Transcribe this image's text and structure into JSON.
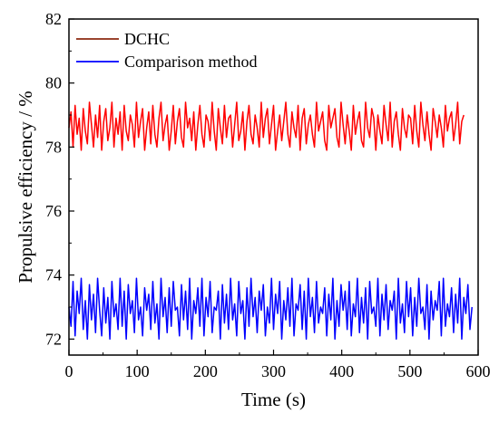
{
  "chart_data": {
    "type": "line",
    "xlabel": "Time (s)",
    "ylabel": "Propulsive efficiency / %",
    "xlim": [
      0,
      600
    ],
    "ylim": [
      71.5,
      82
    ],
    "x_ticks": [
      0,
      100,
      200,
      300,
      400,
      500,
      600
    ],
    "x_tick_labels": [
      "0",
      "100",
      "200",
      "300",
      "400",
      "500",
      "600"
    ],
    "y_ticks": [
      72,
      74,
      76,
      78,
      80,
      82
    ],
    "y_tick_labels": [
      "72",
      "74",
      "76",
      "78",
      "80",
      "82"
    ],
    "grid": false,
    "legend_position": "top-left",
    "series": [
      {
        "name": "DCHC",
        "color": "#ff0000",
        "legend_color": "#8b2a10",
        "x_start": 0,
        "x_step": 3,
        "values": [
          78.6,
          79.1,
          78.0,
          79.3,
          78.4,
          78.9,
          77.9,
          79.2,
          78.5,
          78.1,
          79.4,
          78.7,
          78.0,
          79.0,
          78.3,
          79.3,
          77.9,
          78.8,
          79.2,
          78.2,
          78.6,
          79.4,
          78.0,
          78.9,
          78.4,
          79.1,
          77.9,
          79.3,
          78.5,
          78.2,
          79.0,
          78.7,
          78.0,
          79.4,
          78.3,
          78.8,
          79.2,
          77.9,
          78.6,
          79.1,
          78.1,
          79.3,
          78.4,
          78.0,
          78.9,
          79.4,
          78.2,
          78.7,
          79.0,
          77.9,
          78.5,
          79.3,
          78.1,
          78.8,
          79.2,
          78.3,
          78.0,
          79.4,
          78.6,
          78.9,
          78.2,
          79.1,
          77.9,
          78.7,
          79.3,
          78.4,
          78.0,
          79.0,
          78.8,
          78.2,
          79.4,
          78.5,
          77.9,
          79.2,
          78.6,
          78.1,
          79.3,
          78.3,
          78.9,
          79.0,
          78.0,
          78.7,
          79.4,
          78.2,
          78.5,
          79.1,
          77.9,
          78.8,
          79.3,
          78.4,
          78.1,
          79.0,
          78.6,
          78.0,
          79.4,
          78.3,
          78.9,
          79.2,
          78.1,
          78.7,
          79.3,
          77.9,
          78.5,
          79.0,
          78.2,
          78.8,
          79.4,
          78.4,
          78.0,
          79.1,
          78.6,
          78.3,
          79.3,
          77.9,
          78.9,
          79.2,
          78.1,
          78.7,
          79.0,
          78.4,
          78.0,
          79.4,
          78.5,
          78.8,
          79.1,
          78.2,
          77.9,
          79.3,
          78.6,
          78.9,
          79.2,
          78.3,
          78.0,
          79.4,
          78.7,
          78.1,
          79.0,
          78.5,
          77.9,
          79.3,
          78.4,
          78.8,
          79.1,
          78.2,
          78.0,
          79.4,
          78.6,
          78.3,
          79.2,
          78.9,
          77.9,
          79.0,
          78.5,
          78.1,
          79.3,
          78.7,
          78.2,
          79.4,
          78.0,
          78.8,
          79.1,
          78.4,
          77.9,
          79.2,
          78.6,
          78.3,
          79.0,
          78.9,
          78.1,
          79.3,
          78.5,
          78.0,
          79.4,
          78.7,
          78.2,
          79.1,
          78.4,
          77.9,
          79.2,
          78.8,
          78.3,
          79.0,
          78.6,
          78.0,
          79.3,
          78.5,
          78.9,
          79.1,
          78.2,
          78.7,
          79.4,
          78.1,
          78.8,
          79.0
        ]
      },
      {
        "name": "Comparison method",
        "color": "#0000ff",
        "legend_color": "#0000ff",
        "x_start": 0,
        "x_step": 3,
        "values": [
          73.0,
          72.4,
          73.8,
          72.1,
          73.5,
          72.8,
          73.9,
          72.3,
          73.2,
          72.0,
          73.7,
          72.6,
          73.4,
          72.2,
          73.9,
          72.9,
          72.1,
          73.6,
          72.5,
          73.3,
          72.0,
          73.8,
          72.7,
          73.1,
          72.3,
          73.9,
          72.4,
          73.5,
          72.0,
          73.7,
          72.8,
          73.2,
          72.2,
          73.9,
          72.6,
          73.0,
          72.1,
          73.6,
          72.9,
          73.4,
          72.3,
          73.8,
          72.5,
          73.1,
          72.0,
          73.9,
          72.7,
          73.3,
          72.2,
          73.6,
          72.4,
          73.8,
          72.9,
          73.0,
          72.1,
          73.7,
          72.6,
          73.5,
          72.3,
          73.9,
          72.0,
          73.2,
          72.8,
          73.6,
          72.4,
          73.9,
          72.1,
          73.3,
          72.7,
          73.8,
          72.2,
          73.0,
          72.9,
          73.5,
          72.0,
          73.7,
          72.5,
          73.4,
          72.3,
          73.9,
          72.6,
          73.1,
          72.1,
          73.8,
          72.8,
          73.2,
          72.0,
          73.6,
          72.4,
          73.9,
          72.7,
          73.3,
          72.2,
          73.5,
          72.9,
          73.7,
          72.1,
          73.0,
          72.5,
          73.9,
          72.3,
          73.4,
          72.8,
          73.8,
          72.0,
          73.2,
          72.6,
          73.6,
          72.4,
          73.9,
          72.1,
          73.1,
          72.9,
          73.7,
          72.3,
          73.5,
          72.0,
          73.9,
          72.7,
          73.3,
          72.2,
          73.8,
          72.5,
          73.0,
          72.8,
          73.6,
          72.1,
          73.4,
          72.6,
          73.9,
          72.0,
          73.2,
          72.4,
          73.7,
          72.9,
          73.5,
          72.3,
          73.8,
          72.1,
          73.1,
          72.7,
          73.9,
          72.2,
          73.3,
          72.5,
          73.6,
          72.0,
          73.8,
          72.8,
          73.0,
          72.4,
          73.9,
          72.1,
          73.4,
          72.6,
          73.7,
          72.3,
          73.2,
          72.9,
          73.5,
          72.0,
          73.9,
          72.5,
          73.1,
          72.2,
          73.8,
          72.7,
          73.6,
          72.1,
          73.3,
          72.4,
          73.9,
          72.8,
          73.0,
          72.3,
          73.7,
          72.0,
          73.5,
          72.6,
          73.2,
          72.9,
          73.8,
          72.1,
          73.9,
          72.4,
          73.1,
          72.7,
          73.6,
          72.2,
          73.4,
          72.5,
          73.9,
          72.0,
          73.3,
          72.8,
          73.7,
          72.3,
          73.0
        ]
      }
    ]
  }
}
